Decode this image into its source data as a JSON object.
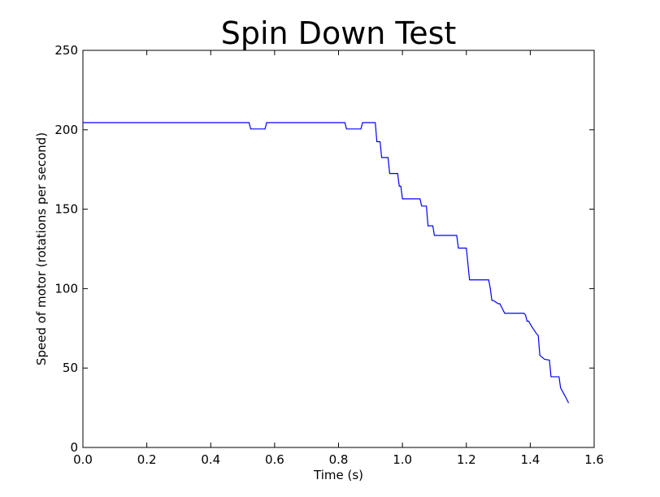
{
  "chart_data": {
    "type": "line",
    "title": "Spin Down Test",
    "xlabel": "Time (s)",
    "ylabel": "Speed of motor (rotations per second)",
    "xlim": [
      0.0,
      1.6
    ],
    "ylim": [
      0,
      250
    ],
    "x_ticks": [
      "0.0",
      "0.2",
      "0.4",
      "0.6",
      "0.8",
      "1.0",
      "1.2",
      "1.4",
      "1.6"
    ],
    "x_tick_values": [
      0.0,
      0.2,
      0.4,
      0.6,
      0.8,
      1.0,
      1.2,
      1.4,
      1.6
    ],
    "y_ticks": [
      "0",
      "50",
      "100",
      "150",
      "200",
      "250"
    ],
    "y_tick_values": [
      0,
      50,
      100,
      150,
      200,
      250
    ],
    "grid": false,
    "series": [
      {
        "color": "#0000ff",
        "x": [
          0.0,
          0.52,
          0.525,
          0.57,
          0.575,
          0.82,
          0.825,
          0.87,
          0.875,
          0.915,
          0.92,
          0.93,
          0.935,
          0.955,
          0.96,
          0.985,
          0.99,
          0.995,
          1.0,
          1.005,
          1.055,
          1.06,
          1.075,
          1.08,
          1.095,
          1.1,
          1.17,
          1.175,
          1.2,
          1.21,
          1.27,
          1.275,
          1.28,
          1.285,
          1.3,
          1.305,
          1.32,
          1.325,
          1.38,
          1.385,
          1.39,
          1.395,
          1.405,
          1.42,
          1.425,
          1.43,
          1.445,
          1.46,
          1.465,
          1.49,
          1.495,
          1.51,
          1.52
        ],
        "y": [
          204.5,
          204.5,
          200.5,
          200.5,
          204.5,
          204.5,
          200.5,
          200.5,
          204.5,
          204.5,
          192.5,
          192.5,
          182.5,
          182.5,
          172.5,
          172.5,
          164.5,
          164.5,
          156.5,
          156.5,
          156.5,
          152,
          152,
          139.5,
          139.5,
          133.5,
          133.5,
          125.5,
          125.5,
          105.5,
          105.5,
          100,
          92.5,
          92.5,
          90.5,
          90.5,
          84.5,
          84.5,
          84.5,
          83.5,
          79.5,
          79.5,
          76,
          71.5,
          70.5,
          58,
          55.5,
          55,
          44.5,
          44.5,
          37.5,
          32,
          28
        ]
      }
    ]
  }
}
